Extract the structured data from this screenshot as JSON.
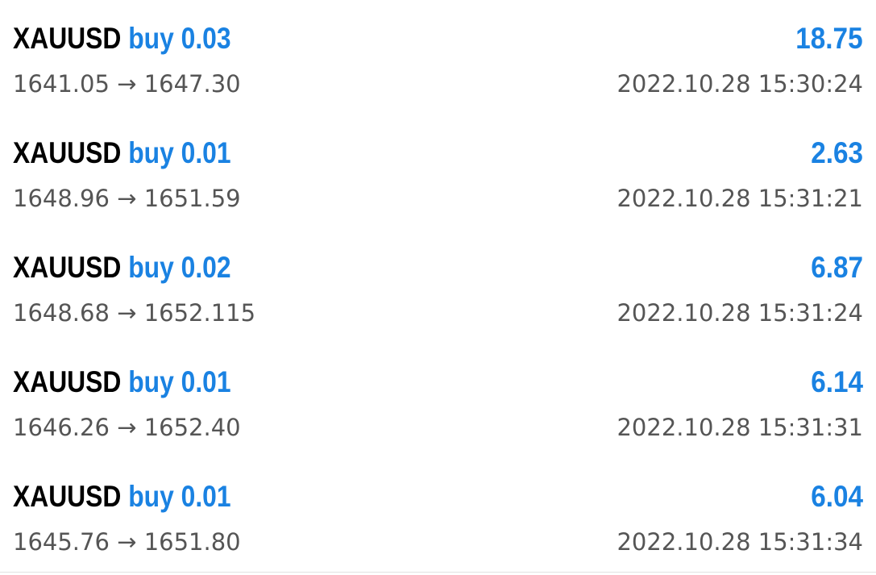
{
  "colors": {
    "symbol": "#000000",
    "accent_blue": "#1a82e2",
    "secondary_text": "#555555",
    "background": "#ffffff"
  },
  "arrow_glyph": "→",
  "trades": [
    {
      "symbol": "XAUUSD",
      "side": "buy",
      "lots": "0.03",
      "open_price": "1641.05",
      "close_price": "1647.30",
      "profit": "18.75",
      "time": "2022.10.28 15:30:24"
    },
    {
      "symbol": "XAUUSD",
      "side": "buy",
      "lots": "0.01",
      "open_price": "1648.96",
      "close_price": "1651.59",
      "profit": "2.63",
      "time": "2022.10.28 15:31:21"
    },
    {
      "symbol": "XAUUSD",
      "side": "buy",
      "lots": "0.02",
      "open_price": "1648.68",
      "close_price": "1652.115",
      "profit": "6.87",
      "time": "2022.10.28 15:31:24"
    },
    {
      "symbol": "XAUUSD",
      "side": "buy",
      "lots": "0.01",
      "open_price": "1646.26",
      "close_price": "1652.40",
      "profit": "6.14",
      "time": "2022.10.28 15:31:31"
    },
    {
      "symbol": "XAUUSD",
      "side": "buy",
      "lots": "0.01",
      "open_price": "1645.76",
      "close_price": "1651.80",
      "profit": "6.04",
      "time": "2022.10.28 15:31:34"
    }
  ]
}
